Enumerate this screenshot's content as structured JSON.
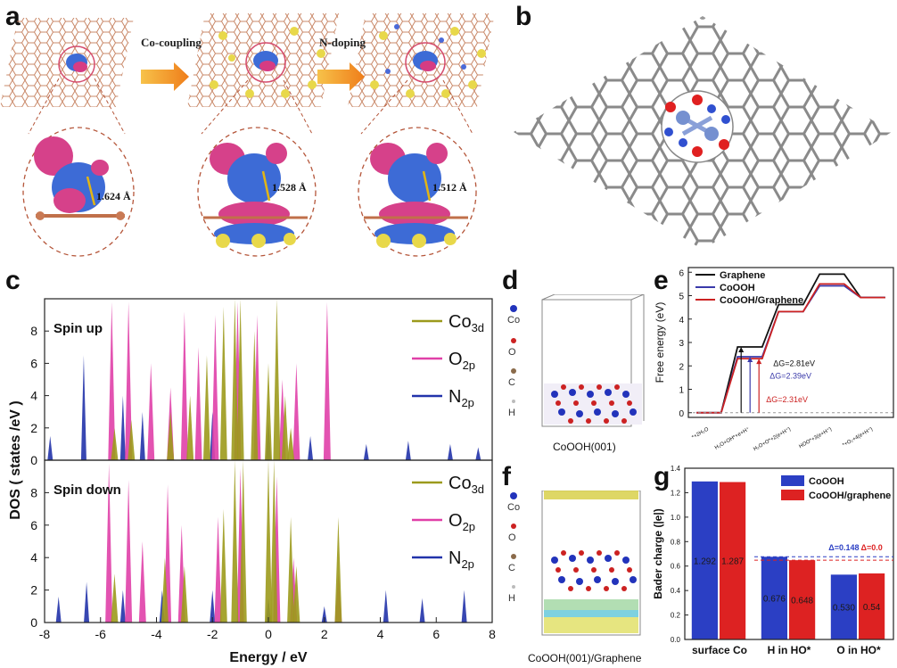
{
  "panels": {
    "a": {
      "label": "a",
      "arrow1": "Co-coupling",
      "arrow2": "N-doping",
      "bond1": "1.624 Å",
      "bond2": "1.528 Å",
      "bond3": "1.512 Å"
    },
    "b": {
      "label": "b"
    },
    "c": {
      "label": "c"
    },
    "d": {
      "label": "d",
      "legend": [
        "Co",
        "O",
        "C",
        "H"
      ],
      "caption": "CoOOH(001)"
    },
    "e": {
      "label": "e"
    },
    "f": {
      "label": "f",
      "legend": [
        "Co",
        "O",
        "C",
        "H"
      ],
      "caption": "CoOOH(001)/Graphene"
    },
    "g": {
      "label": "g"
    }
  },
  "chart_data": [
    {
      "id": "c",
      "type": "area",
      "xlabel": "Energy / eV",
      "ylabel": "DOS ( states /eV )",
      "xlim": [
        -8,
        8
      ],
      "xticks": [
        "-8",
        "-6",
        "-4",
        "-2",
        "0",
        "2",
        "4",
        "6",
        "8"
      ],
      "subplots": [
        {
          "title": "Spin up",
          "ylim": [
            0,
            10
          ],
          "yticks": [
            "0",
            "2",
            "4",
            "6",
            "8"
          ]
        },
        {
          "title": "Spin down",
          "ylim": [
            0,
            10
          ],
          "yticks": [
            "0",
            "2",
            "4",
            "6",
            "8"
          ]
        }
      ],
      "series": [
        {
          "name": "Co",
          "sub": "3d",
          "color": "#9c9a1c"
        },
        {
          "name": "O",
          "sub": "2p",
          "color": "#e040a8"
        },
        {
          "name": "N",
          "sub": "2p",
          "color": "#2233aa"
        }
      ],
      "spin_up_peaks": {
        "Co3d": [
          [
            -5.5,
            2.0
          ],
          [
            -4.9,
            2.5
          ],
          [
            -3.5,
            3.0
          ],
          [
            -2.8,
            4.0
          ],
          [
            -2.2,
            6.5
          ],
          [
            -1.6,
            9.5
          ],
          [
            -1.2,
            10
          ],
          [
            -1.0,
            10
          ],
          [
            -0.5,
            8
          ],
          [
            0.0,
            6
          ],
          [
            0.3,
            10
          ],
          [
            0.6,
            4
          ],
          [
            0.8,
            2
          ]
        ],
        "O2p": [
          [
            -5.6,
            9.8
          ],
          [
            -5.0,
            9.8
          ],
          [
            -4.2,
            6
          ],
          [
            -3.5,
            4.5
          ],
          [
            -3.0,
            9.2
          ],
          [
            -2.5,
            7
          ],
          [
            -1.9,
            9
          ],
          [
            -1.1,
            9.8
          ],
          [
            -0.4,
            9
          ],
          [
            0.5,
            5
          ],
          [
            1.0,
            6
          ],
          [
            2.1,
            9.8
          ]
        ],
        "N2p": [
          [
            -7.8,
            1.5
          ],
          [
            -6.6,
            6.5
          ],
          [
            -5.2,
            4
          ],
          [
            -4.5,
            3
          ],
          [
            -2.0,
            3
          ],
          [
            0.0,
            2.5
          ],
          [
            1.5,
            1.5
          ],
          [
            3.5,
            1.0
          ],
          [
            5.0,
            1.2
          ],
          [
            6.5,
            1.0
          ],
          [
            7.5,
            0.8
          ]
        ]
      },
      "spin_down_peaks": {
        "Co3d": [
          [
            -5.5,
            3.0
          ],
          [
            -3.7,
            4.0
          ],
          [
            -3.0,
            3.5
          ],
          [
            -1.6,
            7.0
          ],
          [
            -1.2,
            10
          ],
          [
            -0.9,
            10
          ],
          [
            0.0,
            10
          ],
          [
            0.2,
            10
          ],
          [
            0.8,
            6.5
          ],
          [
            1.0,
            3.5
          ],
          [
            2.5,
            6.5
          ]
        ],
        "O2p": [
          [
            -5.7,
            9.8
          ],
          [
            -5.0,
            8.8
          ],
          [
            -4.5,
            5
          ],
          [
            -3.6,
            8.5
          ],
          [
            -3.1,
            6
          ],
          [
            -1.8,
            6.5
          ],
          [
            -1.0,
            9.5
          ],
          [
            0.3,
            9
          ],
          [
            0.9,
            4
          ],
          [
            2.5,
            3
          ]
        ],
        "N2p": [
          [
            -7.5,
            1.6
          ],
          [
            -6.5,
            2.5
          ],
          [
            -5.2,
            2.0
          ],
          [
            -3.8,
            2.0
          ],
          [
            -2.0,
            2.0
          ],
          [
            0.0,
            1.5
          ],
          [
            2.0,
            1.0
          ],
          [
            4.2,
            2.0
          ],
          [
            5.5,
            1.5
          ],
          [
            7.0,
            2.0
          ]
        ]
      }
    },
    {
      "id": "e",
      "type": "line",
      "ylabel": "Free energy (eV)",
      "ylim": [
        -0.2,
        6.2
      ],
      "yticks": [
        "0",
        "1",
        "2",
        "3",
        "4",
        "5",
        "6"
      ],
      "categories": [
        "*+2H₂O",
        "H₂O+OH*+e+H⁺",
        "H₂O+O*+2(e+H⁺)",
        "HOO*+3(e+H⁺)",
        "*+O₂+4(e+H⁺)"
      ],
      "series": [
        {
          "name": "Graphene",
          "color": "#111111",
          "values": [
            0,
            2.81,
            4.62,
            5.92,
            4.92
          ]
        },
        {
          "name": "CoOOH",
          "color": "#3a3aaa",
          "values": [
            0,
            2.39,
            4.32,
            5.42,
            4.92
          ]
        },
        {
          "name": "CoOOH/Graphene",
          "color": "#cc2222",
          "values": [
            0,
            2.31,
            4.32,
            5.5,
            4.92
          ]
        }
      ],
      "annotations": [
        {
          "text": "ΔG=2.81eV",
          "color": "#111111"
        },
        {
          "text": "ΔG=2.39eV",
          "color": "#3a3aaa"
        },
        {
          "text": "ΔG=2.31eV",
          "color": "#cc2222"
        }
      ]
    },
    {
      "id": "g",
      "type": "bar",
      "ylabel": "Bader charge (|e|)",
      "ylim": [
        0,
        1.4
      ],
      "yticks": [
        "0.0",
        "0.2",
        "0.4",
        "0.6",
        "0.8",
        "1.0",
        "1.2",
        "1.4"
      ],
      "categories": [
        "surface Co",
        "H in HO*",
        "O in HO*"
      ],
      "series": [
        {
          "name": "CoOOH",
          "color": "#2b3fc4",
          "values": [
            1.292,
            0.676,
            0.53
          ],
          "labels": [
            "1.292",
            "0.676",
            "0.530"
          ]
        },
        {
          "name": "CoOOH/graphene",
          "color": "#dd2222",
          "values": [
            1.287,
            0.648,
            0.54
          ],
          "labels": [
            "1.287",
            "0.648",
            "0.54"
          ]
        }
      ],
      "annotations": [
        {
          "text": "Δ=0.148",
          "color": "#2b3fc4"
        },
        {
          "text": "Δ=0.0",
          "color": "#dd2222"
        }
      ]
    }
  ]
}
